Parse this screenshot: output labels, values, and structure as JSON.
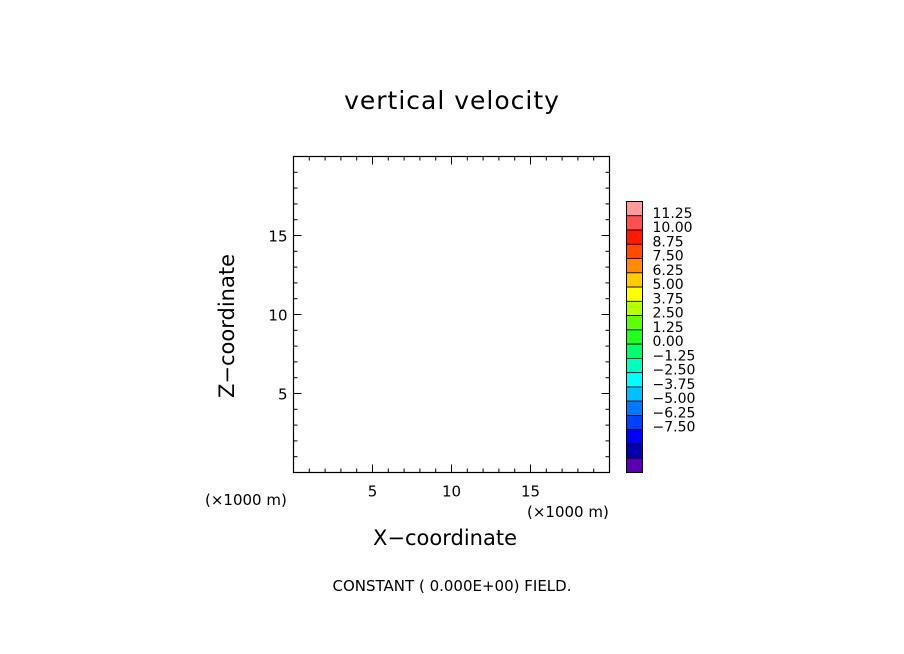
{
  "chart_data": {
    "type": "heatmap",
    "title": "vertical velocity",
    "xlabel": "X−coordinate",
    "ylabel": "Z−coordinate",
    "x_unit": "(×1000 m)",
    "y_unit": "(×1000 m)",
    "xlim": [
      0,
      20
    ],
    "ylim": [
      0,
      20
    ],
    "x_ticks": [
      5,
      10,
      15
    ],
    "y_ticks": [
      5,
      10,
      15
    ],
    "x_minor_step": 1,
    "y_minor_step": 1,
    "field_value": 0.0,
    "annotation": "CONSTANT ( 0.000E+00) FIELD.",
    "colorbar": {
      "labels": [
        "11.25",
        "10.00",
        "8.75",
        "7.50",
        "6.25",
        "5.00",
        "3.75",
        "2.50",
        "1.25",
        "0.00",
        "−1.25",
        "−2.50",
        "−3.75",
        "−5.00",
        "−6.25",
        "−7.50"
      ],
      "colors": [
        "#ff9a9a",
        "#ff5050",
        "#ff1a00",
        "#ff4a00",
        "#ff8c00",
        "#ffcc00",
        "#ffff00",
        "#b4ff00",
        "#60ff00",
        "#1fff20",
        "#00ff70",
        "#00ffc0",
        "#00ffff",
        "#00c0ff",
        "#0078ff",
        "#0040ff",
        "#0000ff",
        "#0000b0",
        "#5a00b0"
      ]
    }
  }
}
